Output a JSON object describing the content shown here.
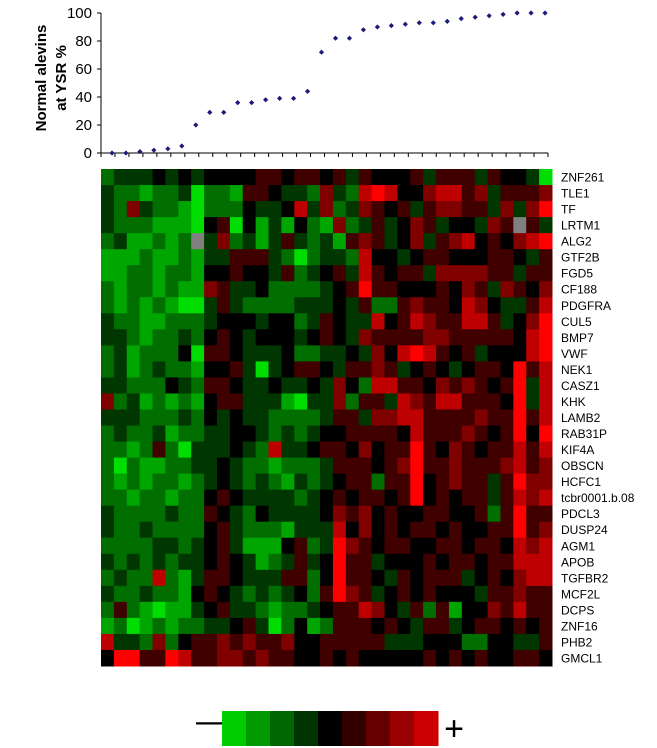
{
  "chart_data": [
    {
      "type": "scatter",
      "ylabel": [
        "Normal alevins",
        "at YSR %"
      ],
      "ylim": [
        0,
        100
      ],
      "yticks": [
        "0",
        "20",
        "40",
        "60",
        "80",
        "100"
      ],
      "marker_color": "#1b1b7a",
      "series": [
        {
          "x": [
            1,
            2,
            3,
            4,
            5,
            6,
            7,
            8,
            9,
            10,
            11,
            12,
            13,
            14,
            15,
            16,
            17,
            18,
            19,
            20,
            21,
            22,
            23,
            24,
            25,
            26,
            27,
            28,
            29,
            30,
            31,
            32
          ],
          "y": [
            0,
            0,
            1,
            2,
            3,
            5,
            20,
            29,
            29,
            36,
            36,
            38,
            39,
            39,
            44,
            72,
            82,
            82,
            88,
            90,
            91,
            92,
            93,
            93,
            94,
            96,
            97,
            98,
            99,
            100,
            100,
            100
          ]
        }
      ],
      "point_count": 32
    },
    {
      "type": "heatmap",
      "rows": [
        "ZNF261",
        "TLE1",
        "TF",
        "LRTM1",
        "ALG2",
        "GTF2B",
        "FGD5",
        "CF188",
        "PDGFRA",
        "CUL5",
        "BMP7",
        "VWF",
        "NEK1",
        "CASZ1",
        "KHK",
        "LAMB2",
        "RAB31P",
        "KIF4A",
        "OBSCN",
        "HCFC1",
        "tcbr0001.b.08",
        "PDCL3",
        "DUSP24",
        "AGM1",
        "APOB",
        "TGFBR2",
        "MCF2L",
        "DCPS",
        "ZNF16",
        "PHB2",
        "GMCL1"
      ],
      "value_range": [
        -4,
        4
      ],
      "missing_color": "#808080",
      "palette": {
        "negative": "#00dd00",
        "zero": "#000000",
        "positive": "#ff0000"
      },
      "values": [
        [
          -2,
          -1,
          -1,
          -1,
          0,
          -1,
          0,
          -1,
          0,
          0,
          0,
          0,
          1,
          1,
          0,
          1,
          1,
          0,
          1,
          -1,
          1,
          0,
          0,
          0,
          1,
          -1,
          1,
          1,
          1,
          -1,
          1,
          0,
          0,
          -1,
          -4
        ],
        [
          -1,
          -2,
          -2,
          -3,
          -2,
          -2,
          -1,
          -4,
          -2,
          -2,
          -3,
          1,
          1,
          0,
          -1,
          -1,
          -2,
          2,
          -1,
          -2,
          3,
          4,
          3,
          0,
          0,
          2,
          3,
          3,
          1,
          2,
          -1,
          1,
          1,
          1,
          2
        ],
        [
          -1,
          -2,
          2,
          -1,
          -2,
          -2,
          -3,
          -4,
          -2,
          -2,
          -2,
          0,
          -1,
          -1,
          0,
          3,
          -1,
          2,
          -2,
          -1,
          2,
          1,
          0,
          1,
          -1,
          1,
          2,
          2,
          1,
          1,
          -1,
          2,
          -1,
          2,
          4
        ],
        [
          -1,
          -2,
          -2,
          -2,
          -3,
          -3,
          -3,
          -4,
          0,
          1,
          -4,
          0,
          -3,
          -1,
          -3,
          0,
          -2,
          -3,
          2,
          -2,
          -1,
          1,
          -1,
          0,
          2,
          1,
          -1,
          0,
          0,
          -1,
          2,
          1,
          "NA",
          1,
          -1
        ],
        [
          -2,
          -1,
          -3,
          -3,
          -2,
          -3,
          -2,
          "NA",
          -1,
          2,
          -2,
          -1,
          -3,
          -1,
          1,
          -1,
          -2,
          -1,
          -3,
          1,
          2,
          1,
          -1,
          0,
          2,
          -1,
          1,
          2,
          3,
          0,
          1,
          0,
          2,
          3,
          4
        ],
        [
          -3,
          -3,
          -3,
          -2,
          -3,
          -3,
          -2,
          -3,
          -1,
          -1,
          1,
          1,
          1,
          -1,
          -2,
          -4,
          -2,
          -1,
          -1,
          -2,
          3,
          0,
          0,
          -1,
          0,
          1,
          1,
          0,
          0,
          0,
          1,
          1,
          0,
          -1,
          1
        ],
        [
          -3,
          -3,
          -2,
          -2,
          -3,
          -2,
          -2,
          -3,
          0,
          0,
          1,
          0,
          0,
          -1,
          1,
          -2,
          -1,
          0,
          1,
          -1,
          3,
          1,
          0,
          1,
          1,
          -1,
          2,
          2,
          2,
          2,
          1,
          1,
          -1,
          1,
          1
        ],
        [
          -2,
          -3,
          -2,
          -2,
          -3,
          -2,
          -3,
          -3,
          2,
          1,
          -1,
          -1,
          0,
          -2,
          -2,
          -2,
          -2,
          -1,
          0,
          1,
          4,
          1,
          1,
          0,
          0,
          0,
          1,
          0,
          2,
          1,
          -1,
          2,
          1,
          0,
          2
        ],
        [
          -2,
          -3,
          -2,
          -3,
          -2,
          -3,
          -4,
          -4,
          -1,
          1,
          -1,
          -2,
          -2,
          -2,
          -2,
          -1,
          -1,
          -1,
          0,
          -1,
          1,
          -2,
          -2,
          1,
          2,
          1,
          1,
          0,
          3,
          2,
          0,
          -1,
          -1,
          1,
          3
        ],
        [
          -1,
          -2,
          -2,
          -3,
          -3,
          -2,
          -2,
          -2,
          -1,
          0,
          0,
          0,
          -1,
          0,
          0,
          -2,
          -1,
          1,
          0,
          -1,
          -1,
          3,
          0,
          1,
          3,
          2,
          1,
          1,
          3,
          3,
          1,
          -1,
          0,
          2,
          4
        ],
        [
          -1,
          -1,
          -2,
          -3,
          -2,
          -2,
          -1,
          -2,
          0,
          1,
          0,
          -1,
          0,
          0,
          0,
          -1,
          0,
          1,
          0,
          -1,
          2,
          1,
          1,
          1,
          1,
          2,
          2,
          1,
          1,
          1,
          1,
          1,
          0,
          3,
          4
        ],
        [
          -2,
          -1,
          -3,
          -2,
          -2,
          -2,
          0,
          -4,
          1,
          1,
          0,
          -1,
          -1,
          -1,
          0,
          -2,
          -2,
          -1,
          -1,
          0,
          -1,
          2,
          0,
          3,
          4,
          3,
          1,
          0,
          1,
          -1,
          0,
          0,
          0,
          3,
          4
        ],
        [
          -2,
          -1,
          -3,
          -2,
          -1,
          -2,
          -2,
          -3,
          0,
          0,
          1,
          -1,
          -4,
          -1,
          0,
          1,
          1,
          0,
          -1,
          1,
          1,
          2,
          1,
          -1,
          0,
          1,
          0,
          -1,
          0,
          1,
          1,
          0,
          4,
          1,
          3
        ],
        [
          -1,
          -1,
          -2,
          -2,
          -2,
          0,
          -1,
          -2,
          1,
          1,
          0,
          -1,
          -1,
          0,
          -1,
          -1,
          0,
          -1,
          2,
          0,
          -2,
          3,
          3,
          1,
          1,
          0,
          2,
          1,
          2,
          1,
          0,
          1,
          4,
          -1,
          3
        ],
        [
          2,
          -2,
          -1,
          -3,
          -2,
          -3,
          -2,
          -3,
          0,
          1,
          1,
          -1,
          -1,
          -1,
          -3,
          -4,
          -1,
          -1,
          2,
          -2,
          1,
          1,
          -1,
          3,
          2,
          1,
          3,
          3,
          1,
          1,
          1,
          0,
          4,
          -1,
          3
        ],
        [
          -1,
          -1,
          -1,
          -2,
          -2,
          -2,
          -1,
          -2,
          0,
          -1,
          0,
          -1,
          -1,
          -2,
          -2,
          -2,
          -2,
          -1,
          1,
          1,
          -1,
          2,
          2,
          3,
          3,
          1,
          1,
          1,
          1,
          2,
          1,
          1,
          4,
          1,
          3
        ],
        [
          -2,
          -1,
          -2,
          -2,
          -1,
          -3,
          -2,
          -2,
          -1,
          -1,
          0,
          0,
          -1,
          -2,
          -1,
          -2,
          -1,
          0,
          0,
          1,
          1,
          1,
          1,
          0,
          3,
          1,
          1,
          1,
          2,
          1,
          0,
          1,
          4,
          0,
          4
        ],
        [
          -2,
          -2,
          -3,
          -2,
          1,
          -2,
          -4,
          -1,
          -1,
          -1,
          0,
          -1,
          -2,
          3,
          -1,
          -1,
          0,
          1,
          1,
          0,
          2,
          0,
          1,
          1,
          4,
          1,
          0,
          2,
          1,
          0,
          1,
          1,
          3,
          1,
          3
        ],
        [
          -2,
          -4,
          -2,
          -3,
          -3,
          -2,
          -2,
          -1,
          -1,
          0,
          -1,
          -2,
          -2,
          -3,
          -2,
          -2,
          -2,
          -1,
          1,
          1,
          1,
          0,
          1,
          2,
          4,
          1,
          1,
          2,
          1,
          1,
          1,
          2,
          3,
          1,
          2
        ],
        [
          -2,
          -3,
          -2,
          -3,
          -2,
          -2,
          -3,
          -2,
          -1,
          0,
          -1,
          -2,
          -1,
          -2,
          -3,
          -1,
          -2,
          -1,
          0,
          1,
          1,
          -2,
          1,
          1,
          4,
          0,
          1,
          2,
          1,
          1,
          -1,
          1,
          4,
          2,
          2
        ],
        [
          -2,
          -2,
          -3,
          -2,
          -2,
          -3,
          -2,
          -2,
          0,
          1,
          0,
          -1,
          -1,
          -1,
          -1,
          -2,
          -1,
          0,
          1,
          0,
          1,
          1,
          0,
          1,
          4,
          0,
          1,
          0,
          1,
          1,
          -1,
          1,
          3,
          2,
          3
        ],
        [
          -1,
          -2,
          -2,
          -2,
          -2,
          -1,
          -2,
          -2,
          1,
          0,
          -1,
          -2,
          0,
          -1,
          -1,
          -1,
          -1,
          0,
          2,
          1,
          2,
          0,
          1,
          0,
          0,
          1,
          1,
          0,
          0,
          1,
          -2,
          1,
          4,
          1,
          1
        ],
        [
          -1,
          -2,
          -2,
          -1,
          -2,
          -2,
          -2,
          -2,
          0,
          1,
          -1,
          -2,
          -2,
          -2,
          -3,
          -1,
          -1,
          -1,
          3,
          0,
          2,
          0,
          1,
          0,
          1,
          1,
          0,
          1,
          0,
          0,
          1,
          1,
          4,
          1,
          2
        ],
        [
          -2,
          -2,
          -2,
          -2,
          -1,
          -1,
          -2,
          -1,
          0,
          1,
          -1,
          -3,
          -3,
          -3,
          0,
          1,
          -2,
          -1,
          4,
          2,
          1,
          0,
          1,
          1,
          0,
          0,
          1,
          1,
          0,
          1,
          1,
          0,
          3,
          2,
          3
        ],
        [
          -1,
          -2,
          -1,
          -2,
          -1,
          -2,
          -1,
          -1,
          0,
          1,
          0,
          -1,
          -3,
          -2,
          -1,
          1,
          -1,
          0,
          4,
          1,
          1,
          -1,
          0,
          0,
          0,
          1,
          0,
          1,
          1,
          0,
          1,
          1,
          3,
          3,
          3
        ],
        [
          -2,
          -1,
          -2,
          -2,
          3,
          -2,
          -3,
          -1,
          1,
          1,
          0,
          -1,
          -1,
          -1,
          1,
          1,
          -2,
          0,
          4,
          1,
          1,
          0,
          -1,
          1,
          0,
          1,
          1,
          1,
          -1,
          0,
          1,
          0,
          2,
          3,
          3
        ],
        [
          -1,
          -2,
          -2,
          -1,
          -2,
          -2,
          -3,
          0,
          1,
          0,
          -1,
          -2,
          -1,
          -2,
          -1,
          0,
          -2,
          1,
          4,
          2,
          1,
          -1,
          0,
          1,
          0,
          1,
          0,
          0,
          0,
          -1,
          1,
          1,
          2,
          1,
          1
        ],
        [
          -2,
          1,
          -2,
          -3,
          -4,
          -3,
          -3,
          -1,
          0,
          1,
          -1,
          -1,
          -2,
          -3,
          -2,
          -2,
          -1,
          0,
          1,
          1,
          3,
          2,
          0,
          -1,
          1,
          -2,
          1,
          -3,
          0,
          0,
          2,
          1,
          3,
          1,
          1
        ],
        [
          -3,
          -2,
          -4,
          -3,
          -2,
          -3,
          -2,
          -2,
          -1,
          -1,
          0,
          1,
          -1,
          -4,
          -2,
          0,
          -3,
          -2,
          1,
          1,
          1,
          0,
          1,
          0,
          -1,
          1,
          1,
          -1,
          0,
          1,
          1,
          0,
          1,
          0,
          1
        ],
        [
          3,
          -1,
          -1,
          -2,
          2,
          -2,
          0,
          1,
          1,
          2,
          1,
          2,
          1,
          1,
          2,
          0,
          0,
          1,
          1,
          1,
          1,
          1,
          -1,
          -1,
          -1,
          0,
          0,
          0,
          -2,
          -2,
          0,
          0,
          -1,
          -1,
          1
        ],
        [
          0,
          4,
          4,
          1,
          1,
          4,
          3,
          1,
          1,
          2,
          2,
          1,
          2,
          1,
          1,
          0,
          0,
          1,
          0,
          1,
          0,
          0,
          0,
          0,
          0,
          1,
          0,
          1,
          0,
          1,
          0,
          0,
          1,
          1,
          0
        ]
      ]
    },
    {
      "type": "legend",
      "minus_symbol": "—",
      "plus_symbol": "+",
      "swatches": [
        "#00cc00",
        "#009900",
        "#006600",
        "#003300",
        "#000000",
        "#330000",
        "#660000",
        "#990000",
        "#cc0000"
      ]
    }
  ]
}
